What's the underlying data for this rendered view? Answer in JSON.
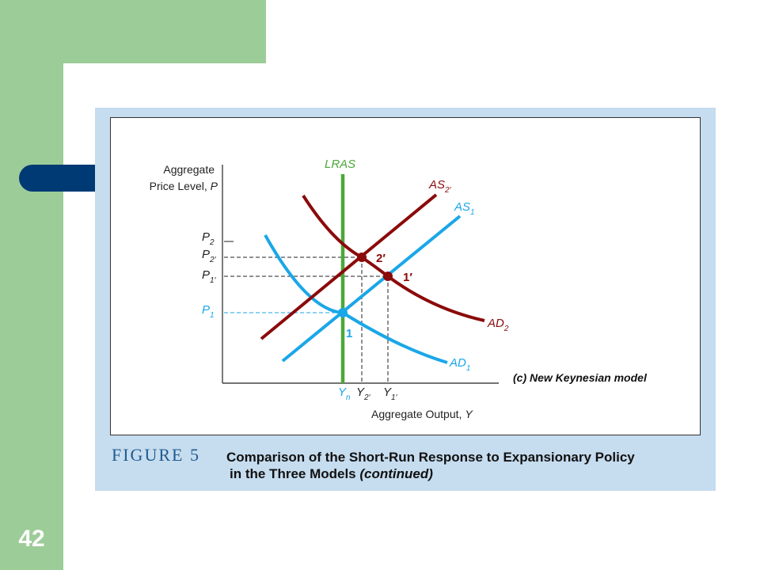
{
  "slide": {
    "page_number": "42"
  },
  "figure": {
    "label": "FIGURE 5",
    "title_line1": "Comparison of the Short-Run Response to Expansionary Policy",
    "title_line2_main": "in the Three Models",
    "title_line2_italic": "(continued)"
  },
  "diagram": {
    "panel_label": "(c) New Keynesian model",
    "y_axis_label_line1": "Aggregate",
    "y_axis_label_line2": "Price Level, ",
    "y_axis_label_var": "P",
    "x_axis_label": "Aggregate Output, ",
    "x_axis_label_var": "Y",
    "curves": {
      "lras": "LRAS",
      "as2prime": {
        "base": "AS",
        "sub": "2′"
      },
      "as1": {
        "base": "AS",
        "sub": "1"
      },
      "ad2": {
        "base": "AD",
        "sub": "2"
      },
      "ad1": {
        "base": "AD",
        "sub": "1"
      }
    },
    "points": {
      "p1": "1",
      "p2prime": "2′",
      "p1prime": "1′"
    },
    "y_ticks": {
      "p2": {
        "base": "P",
        "sub": "2"
      },
      "p2prime": {
        "base": "P",
        "sub": "2′"
      },
      "p1prime": {
        "base": "P",
        "sub": "1′"
      },
      "p1": {
        "base": "P",
        "sub": "1"
      }
    },
    "x_ticks": {
      "yn": {
        "base": "Y",
        "sub": "n"
      },
      "y2prime": {
        "base": "Y",
        "sub": "2′"
      },
      "y1prime": {
        "base": "Y",
        "sub": "1′"
      }
    },
    "colors": {
      "dark_red": "#8b0a0a",
      "blue": "#1aa7e8",
      "green": "#4aa83a",
      "navy": "#003a74"
    }
  }
}
